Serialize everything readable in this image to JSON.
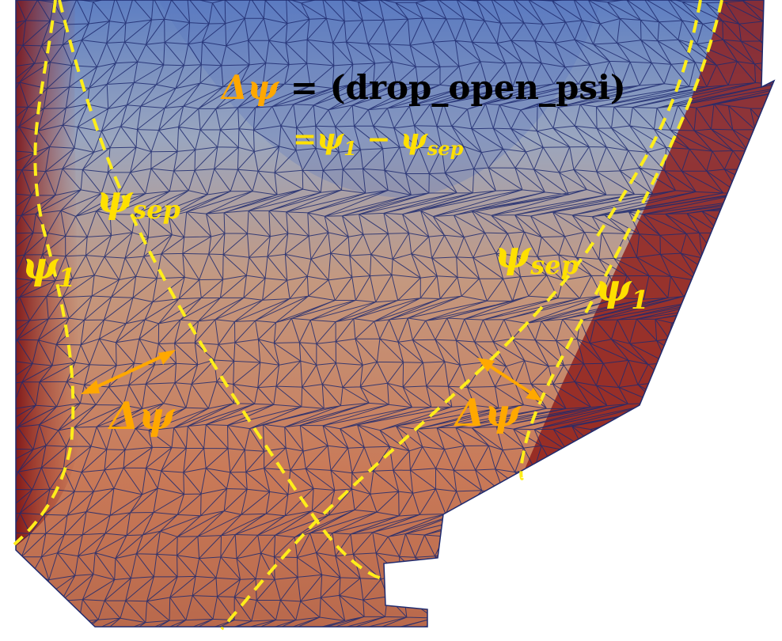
{
  "colors": {
    "separatrix_dash": "#ffee1a",
    "label_yellow": "#ffe000",
    "label_orange": "#ffa800",
    "title_black": "#000000",
    "mesh_line": "#1f2a6e",
    "field_high": "#8a1414",
    "field_mid": "#c77a5c",
    "field_low": "#5a7cc0"
  },
  "annotations": {
    "title_delta": "Δψ",
    "title_eq": " = ",
    "title_param": "(drop_open_psi)",
    "subtitle_prefix": "=",
    "psi": "ψ",
    "sub_1": "1",
    "sub_sep": "sep",
    "minus": " − ",
    "psi_sep_left": "ψ",
    "psi_sep_right": "ψ",
    "psi1_left": "ψ",
    "psi1_right": "ψ",
    "delta_psi_left": "Δψ",
    "delta_psi_right": "Δψ"
  }
}
